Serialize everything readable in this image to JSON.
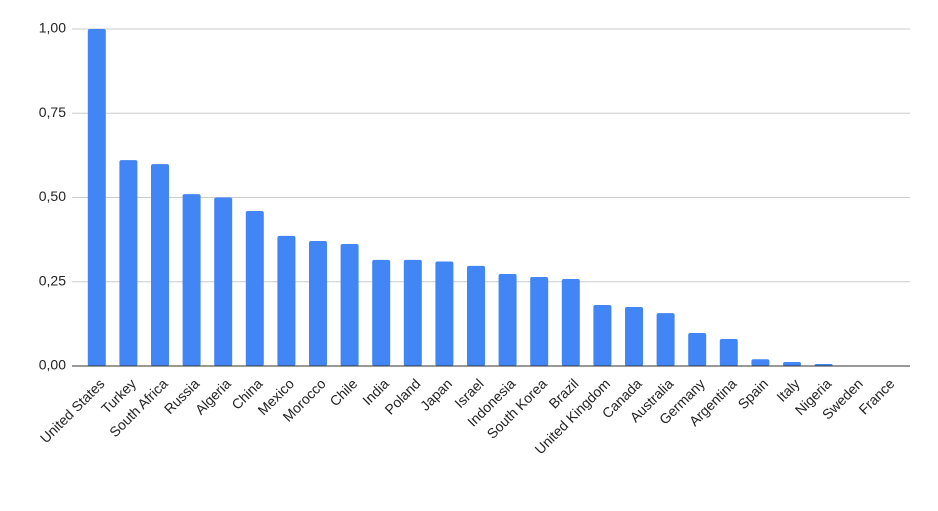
{
  "chart_data": {
    "type": "bar",
    "categories": [
      "United States",
      "Turkey",
      "South Africa",
      "Russia",
      "Algeria",
      "China",
      "Mexico",
      "Morocco",
      "Chile",
      "India",
      "Poland",
      "Japan",
      "Israel",
      "Indonesia",
      "South Korea",
      "Brazil",
      "United Kingdom",
      "Canada",
      "Australia",
      "Germany",
      "Argentina",
      "Spain",
      "Italy",
      "Nigeria",
      "Sweden",
      "France"
    ],
    "values": [
      1.0,
      0.611,
      0.599,
      0.51,
      0.5,
      0.46,
      0.386,
      0.371,
      0.362,
      0.315,
      0.315,
      0.31,
      0.297,
      0.273,
      0.264,
      0.258,
      0.181,
      0.175,
      0.157,
      0.098,
      0.08,
      0.02,
      0.012,
      0.006,
      0,
      0
    ],
    "color": "#4285f4",
    "ylim": [
      0,
      1
    ],
    "yticks": [
      {
        "value": 0,
        "label": "0,00"
      },
      {
        "value": 0.25,
        "label": "0,25"
      },
      {
        "value": 0.5,
        "label": "0,50"
      },
      {
        "value": 0.75,
        "label": "0,75"
      },
      {
        "value": 1,
        "label": "1,00"
      }
    ],
    "grid": true
  }
}
